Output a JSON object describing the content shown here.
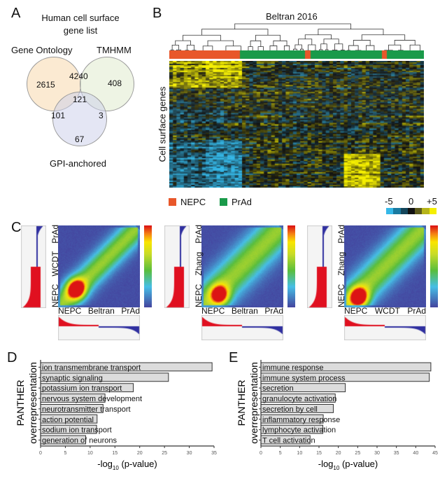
{
  "panels": {
    "a": "A",
    "b": "B",
    "c": "C",
    "d": "D",
    "e": "E"
  },
  "venn": {
    "title_line1": "Human cell surface",
    "title_line2": "gene list",
    "sets": [
      "Gene Ontology",
      "TMHMM",
      "GPI-anchored"
    ],
    "set_colors": [
      "#f9dcb4",
      "#e3ecd2",
      "#c9cdea"
    ],
    "regions": {
      "go_only": "2615",
      "go_tm": "4240",
      "tm_only": "408",
      "all": "121",
      "go_gpi": "101",
      "tm_gpi": "3",
      "gpi_only": "67"
    }
  },
  "heatmap_b": {
    "title": "Beltran 2016",
    "ylabel": "Cell surface genes",
    "sample_groups": [
      "NEPC",
      "PrAd",
      "NEPC",
      "PrAd",
      "NEPC",
      "PrAd"
    ],
    "group_colors": {
      "NEPC": "#e8572a",
      "PrAd": "#1a9a4a"
    },
    "legend": [
      {
        "label": "NEPC",
        "color": "#e8572a"
      },
      {
        "label": "PrAd",
        "color": "#1a9a4a"
      }
    ],
    "scale_labels": [
      "-5",
      "0",
      "+5"
    ],
    "scale_colors": [
      "#35b8e8",
      "#1a7aa0",
      "#14465a",
      "#111111",
      "#5c5a1c",
      "#b6b41a",
      "#f5ef00"
    ]
  },
  "rrho": [
    {
      "xlabel_left": "NEPC",
      "xlabel_mid": "Beltran",
      "xlabel_right": "PrAd",
      "ylabel_left": "NEPC",
      "ylabel_mid": "WCDT",
      "ylabel_right": "PrAd"
    },
    {
      "xlabel_left": "NEPC",
      "xlabel_mid": "Beltran",
      "xlabel_right": "PrAd",
      "ylabel_left": "NEPC",
      "ylabel_mid": "Zhang",
      "ylabel_right": "PrAd"
    },
    {
      "xlabel_left": "NEPC",
      "xlabel_mid": "WCDT",
      "xlabel_right": "PrAd",
      "ylabel_left": "NEPC",
      "ylabel_mid": "Zhang",
      "ylabel_right": "PrAd"
    }
  ],
  "chart_data": [
    {
      "type": "bar",
      "orientation": "horizontal",
      "categories": [
        "ion transmembrane transport",
        "synaptic signaling",
        "potassium ion transport",
        "nervous system development",
        "neurotransmitter transport",
        "action potential",
        "sodium ion transport",
        "generation of neurons"
      ],
      "values": [
        34.6,
        25.8,
        18.7,
        13.0,
        12.6,
        11.4,
        11.3,
        9.1
      ],
      "xlabel_main": "-log",
      "xlabel_sub": "10",
      "xlabel_tail": " (p-value)",
      "ylabel_line1": "PANTHER",
      "ylabel_line2": "overrepresentation",
      "xlim": [
        0,
        35
      ],
      "xticks": [
        "0",
        "5",
        "10",
        "15",
        "20",
        "25",
        "30",
        "35"
      ],
      "bar_color": "#dcdcdc",
      "grid": false
    },
    {
      "type": "bar",
      "orientation": "horizontal",
      "categories": [
        "immune response",
        "immune system process",
        "secretion",
        "granulocyte activation",
        "secretion by cell",
        "inflammatory response",
        "lymphocyte activation",
        "T cell activation"
      ],
      "values": [
        43.9,
        43.5,
        21.8,
        19.2,
        18.7,
        16.1,
        16.0,
        12.7
      ],
      "xlabel_main": "-log",
      "xlabel_sub": "10",
      "xlabel_tail": " (p-value)",
      "ylabel_line1": "PANTHER",
      "ylabel_line2": "overrepresentation",
      "xlim": [
        0,
        45
      ],
      "xticks": [
        "0",
        "5",
        "10",
        "15",
        "20",
        "25",
        "30",
        "35",
        "40",
        "45"
      ],
      "bar_color": "#dcdcdc",
      "grid": false
    }
  ]
}
